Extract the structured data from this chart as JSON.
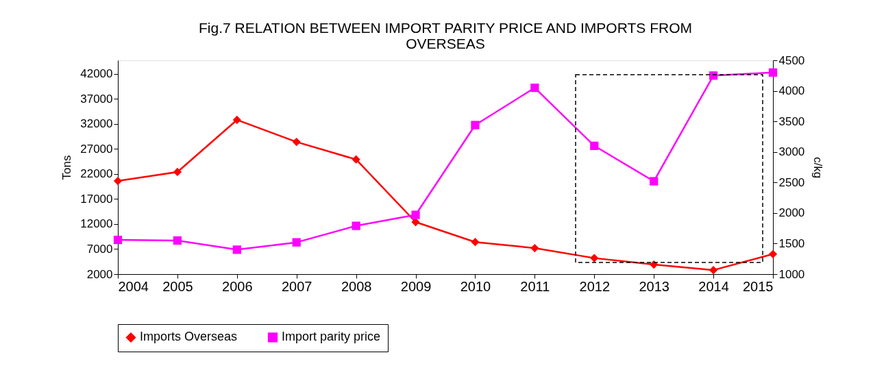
{
  "chart_data": {
    "type": "line",
    "title": [
      "Fig.7  RELATION BETWEEN IMPORT PARITY PRICE AND IMPORTS FROM",
      "OVERSEAS"
    ],
    "x": [
      2004,
      2005,
      2006,
      2007,
      2008,
      2009,
      2010,
      2011,
      2012,
      2013,
      2014,
      2015
    ],
    "xlim": [
      2004,
      2015
    ],
    "xticks": [
      2004,
      2005,
      2006,
      2007,
      2008,
      2009,
      2010,
      2011,
      2012,
      2013,
      2014,
      2015
    ],
    "ylabel": "Tons",
    "y2label": "c/kg",
    "ylim": [
      2000,
      44700
    ],
    "yticks": [
      2000,
      7000,
      12000,
      17000,
      22000,
      27000,
      32000,
      37000,
      42000
    ],
    "y2lim": [
      1000,
      4500
    ],
    "y2ticks": [
      1000,
      1500,
      2000,
      2500,
      3000,
      3500,
      4000,
      4500
    ],
    "series": [
      {
        "name": "Imports Overseas",
        "color": "#ff0000",
        "marker": "diamond",
        "values": [
          20600,
          22400,
          32800,
          28400,
          24900,
          12400,
          8400,
          7200,
          5200,
          3900,
          2800,
          6000
        ]
      },
      {
        "name": "Import parity price",
        "color": "#ff00ff",
        "marker": "square",
        "axis": "y2",
        "values": [
          1560,
          1550,
          1400,
          1520,
          1790,
          1970,
          3440,
          4050,
          3100,
          2520,
          4250,
          4300
        ]
      }
    ],
    "legend": "bottom",
    "grid": false
  }
}
